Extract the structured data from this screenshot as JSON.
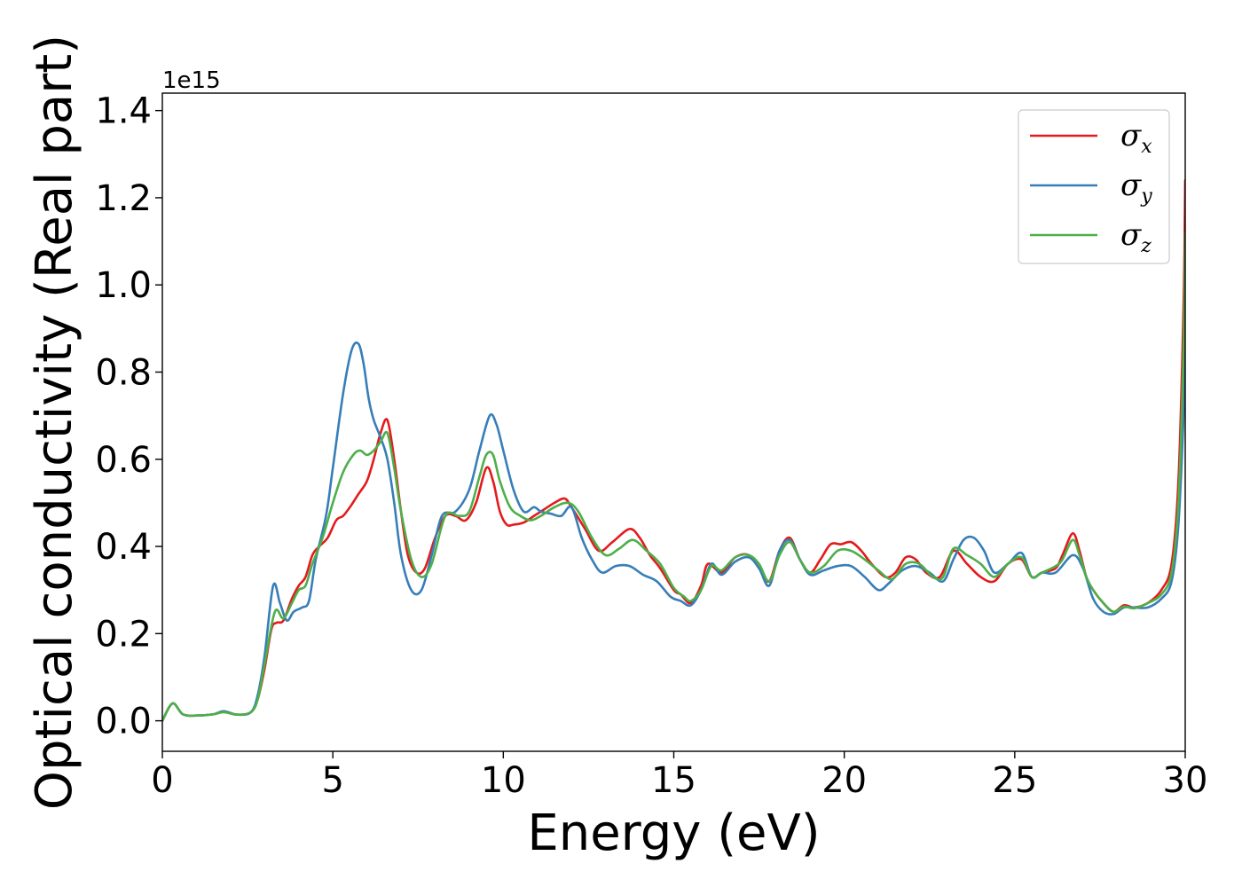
{
  "chart_data": {
    "type": "line",
    "title": "",
    "xlabel": "Energy (eV)",
    "ylabel": "Optical conductivity (Real part)",
    "y_offset_label": "1e15",
    "xlim": [
      0,
      30
    ],
    "ylim": [
      -0.07,
      1.44
    ],
    "xticks": [
      0,
      5,
      10,
      15,
      20,
      25,
      30
    ],
    "xtick_labels": [
      "0",
      "5",
      "10",
      "15",
      "20",
      "25",
      "30"
    ],
    "yticks": [
      0.0,
      0.2,
      0.4,
      0.6,
      0.8,
      1.0,
      1.2,
      1.4
    ],
    "ytick_labels": [
      "0.0",
      "0.2",
      "0.4",
      "0.6",
      "0.8",
      "1.0",
      "1.2",
      "1.4"
    ],
    "grid": false,
    "legend_position": "upper-right",
    "series": [
      {
        "name": "σ",
        "subscript": "x",
        "color": "#e41a1c",
        "x": [
          0,
          0.3,
          0.6,
          1.0,
          1.5,
          1.8,
          2.2,
          2.6,
          2.8,
          3.0,
          3.2,
          3.35,
          3.55,
          3.8,
          4.0,
          4.2,
          4.4,
          4.6,
          4.85,
          5.1,
          5.3,
          5.5,
          5.75,
          6.0,
          6.2,
          6.4,
          6.6,
          6.8,
          7.0,
          7.2,
          7.45,
          7.7,
          8.0,
          8.3,
          8.6,
          8.9,
          9.2,
          9.5,
          9.7,
          9.9,
          10.1,
          10.3,
          10.6,
          10.9,
          11.2,
          11.5,
          11.8,
          12.0,
          12.4,
          12.8,
          13.2,
          13.7,
          14.0,
          14.3,
          14.6,
          15.0,
          15.2,
          15.5,
          15.8,
          16.0,
          16.4,
          16.8,
          17.2,
          17.5,
          17.8,
          18.1,
          18.4,
          18.7,
          19.0,
          19.3,
          19.6,
          19.9,
          20.2,
          20.5,
          20.8,
          21.2,
          21.5,
          21.8,
          22.1,
          22.4,
          22.8,
          23.2,
          23.6,
          24.0,
          24.4,
          24.8,
          25.2,
          25.5,
          25.8,
          26.2,
          26.4,
          26.7,
          26.9,
          27.1,
          27.3,
          27.6,
          27.9,
          28.2,
          28.5,
          28.9,
          29.3,
          29.6,
          29.8,
          29.95,
          30.0
        ],
        "values": [
          0.0,
          0.04,
          0.015,
          0.012,
          0.015,
          0.02,
          0.014,
          0.02,
          0.05,
          0.12,
          0.21,
          0.225,
          0.23,
          0.28,
          0.31,
          0.33,
          0.38,
          0.4,
          0.42,
          0.46,
          0.47,
          0.49,
          0.52,
          0.55,
          0.6,
          0.66,
          0.69,
          0.6,
          0.48,
          0.38,
          0.34,
          0.35,
          0.42,
          0.47,
          0.47,
          0.46,
          0.5,
          0.58,
          0.55,
          0.48,
          0.45,
          0.45,
          0.455,
          0.47,
          0.485,
          0.5,
          0.51,
          0.49,
          0.44,
          0.39,
          0.41,
          0.44,
          0.42,
          0.38,
          0.35,
          0.3,
          0.29,
          0.27,
          0.31,
          0.36,
          0.34,
          0.375,
          0.38,
          0.35,
          0.32,
          0.39,
          0.42,
          0.37,
          0.34,
          0.37,
          0.405,
          0.405,
          0.41,
          0.39,
          0.36,
          0.33,
          0.34,
          0.375,
          0.37,
          0.34,
          0.33,
          0.39,
          0.36,
          0.33,
          0.32,
          0.36,
          0.37,
          0.33,
          0.34,
          0.35,
          0.38,
          0.43,
          0.39,
          0.33,
          0.3,
          0.27,
          0.25,
          0.265,
          0.26,
          0.27,
          0.3,
          0.36,
          0.55,
          0.95,
          1.24
        ]
      },
      {
        "name": "σ",
        "subscript": "y",
        "color": "#377eb8",
        "x": [
          0,
          0.3,
          0.6,
          1.0,
          1.5,
          1.8,
          2.2,
          2.6,
          2.8,
          3.0,
          3.25,
          3.45,
          3.65,
          3.85,
          4.1,
          4.3,
          4.5,
          4.8,
          5.0,
          5.3,
          5.55,
          5.75,
          5.9,
          6.05,
          6.2,
          6.4,
          6.6,
          6.8,
          7.0,
          7.3,
          7.6,
          7.9,
          8.2,
          8.6,
          9.0,
          9.3,
          9.6,
          9.8,
          10.0,
          10.3,
          10.6,
          10.9,
          11.1,
          11.4,
          11.7,
          12.0,
          12.3,
          12.6,
          12.9,
          13.3,
          13.7,
          14.1,
          14.5,
          14.9,
          15.2,
          15.5,
          15.8,
          16.1,
          16.4,
          16.8,
          17.2,
          17.5,
          17.8,
          18.1,
          18.4,
          18.7,
          19.0,
          19.4,
          19.8,
          20.2,
          20.6,
          21.0,
          21.3,
          21.7,
          22.1,
          22.5,
          22.9,
          23.2,
          23.5,
          23.8,
          24.1,
          24.4,
          24.8,
          25.2,
          25.5,
          25.8,
          26.2,
          26.7,
          27.0,
          27.3,
          27.6,
          27.9,
          28.2,
          28.5,
          28.9,
          29.3,
          29.6,
          29.8,
          29.95,
          30.0
        ],
        "values": [
          0.0,
          0.04,
          0.015,
          0.012,
          0.015,
          0.022,
          0.014,
          0.02,
          0.06,
          0.15,
          0.31,
          0.27,
          0.23,
          0.25,
          0.26,
          0.275,
          0.37,
          0.47,
          0.58,
          0.75,
          0.85,
          0.865,
          0.82,
          0.74,
          0.69,
          0.65,
          0.6,
          0.5,
          0.38,
          0.3,
          0.3,
          0.38,
          0.47,
          0.48,
          0.53,
          0.62,
          0.7,
          0.68,
          0.62,
          0.53,
          0.48,
          0.49,
          0.48,
          0.475,
          0.47,
          0.49,
          0.42,
          0.37,
          0.34,
          0.355,
          0.355,
          0.335,
          0.32,
          0.285,
          0.275,
          0.265,
          0.3,
          0.36,
          0.335,
          0.365,
          0.375,
          0.35,
          0.31,
          0.39,
          0.415,
          0.37,
          0.335,
          0.345,
          0.355,
          0.355,
          0.33,
          0.3,
          0.315,
          0.345,
          0.355,
          0.34,
          0.32,
          0.37,
          0.415,
          0.42,
          0.39,
          0.34,
          0.36,
          0.385,
          0.33,
          0.34,
          0.34,
          0.38,
          0.35,
          0.28,
          0.25,
          0.245,
          0.26,
          0.26,
          0.26,
          0.28,
          0.32,
          0.45,
          0.7,
          0.85
        ]
      },
      {
        "name": "σ",
        "subscript": "z",
        "color": "#4daf4a",
        "x": [
          0,
          0.3,
          0.6,
          1.0,
          1.5,
          1.8,
          2.2,
          2.6,
          2.8,
          3.0,
          3.3,
          3.55,
          3.8,
          4.0,
          4.2,
          4.4,
          4.7,
          5.0,
          5.3,
          5.6,
          5.8,
          6.0,
          6.2,
          6.4,
          6.6,
          6.8,
          7.0,
          7.3,
          7.6,
          7.9,
          8.3,
          8.7,
          9.0,
          9.3,
          9.5,
          9.7,
          9.9,
          10.2,
          10.5,
          10.8,
          11.1,
          11.5,
          11.9,
          12.2,
          12.6,
          13.0,
          13.4,
          13.8,
          14.2,
          14.6,
          15.0,
          15.3,
          15.5,
          15.8,
          16.1,
          16.4,
          16.8,
          17.2,
          17.5,
          17.8,
          18.1,
          18.4,
          18.7,
          19.0,
          19.4,
          19.8,
          20.2,
          20.6,
          21.0,
          21.4,
          21.8,
          22.2,
          22.6,
          22.9,
          23.2,
          23.6,
          24.0,
          24.4,
          24.8,
          25.2,
          25.5,
          25.8,
          26.2,
          26.4,
          26.7,
          26.9,
          27.1,
          27.3,
          27.6,
          27.9,
          28.2,
          28.5,
          28.9,
          29.3,
          29.6,
          29.8,
          29.95,
          30.0
        ],
        "values": [
          0.0,
          0.04,
          0.015,
          0.012,
          0.015,
          0.02,
          0.014,
          0.02,
          0.05,
          0.13,
          0.25,
          0.235,
          0.27,
          0.3,
          0.31,
          0.36,
          0.42,
          0.5,
          0.57,
          0.61,
          0.62,
          0.61,
          0.62,
          0.64,
          0.66,
          0.58,
          0.48,
          0.37,
          0.33,
          0.36,
          0.47,
          0.47,
          0.48,
          0.56,
          0.61,
          0.61,
          0.55,
          0.49,
          0.47,
          0.46,
          0.47,
          0.49,
          0.5,
          0.48,
          0.42,
          0.38,
          0.395,
          0.415,
          0.39,
          0.36,
          0.305,
          0.285,
          0.275,
          0.3,
          0.355,
          0.345,
          0.375,
          0.38,
          0.36,
          0.32,
          0.38,
          0.41,
          0.37,
          0.34,
          0.355,
          0.39,
          0.39,
          0.37,
          0.345,
          0.325,
          0.36,
          0.36,
          0.33,
          0.33,
          0.395,
          0.38,
          0.36,
          0.33,
          0.36,
          0.375,
          0.33,
          0.34,
          0.355,
          0.37,
          0.415,
          0.38,
          0.33,
          0.3,
          0.27,
          0.25,
          0.262,
          0.258,
          0.27,
          0.29,
          0.34,
          0.5,
          0.85,
          1.12
        ]
      }
    ]
  }
}
